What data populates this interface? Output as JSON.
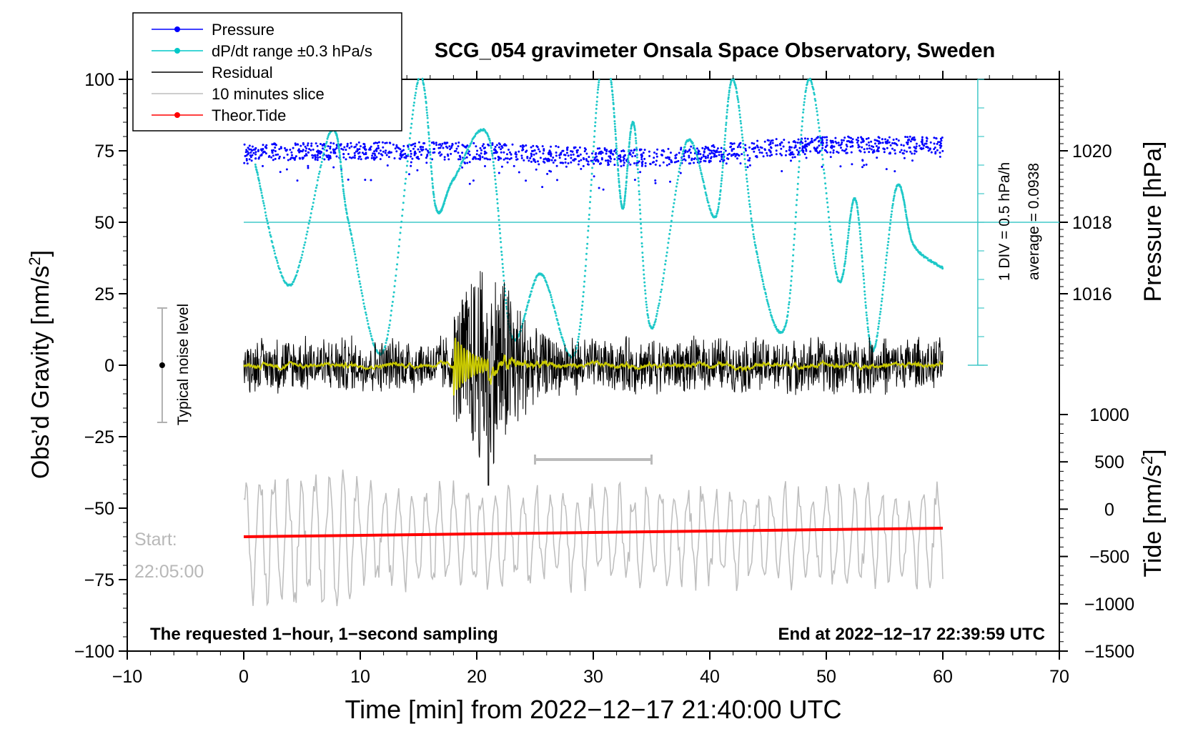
{
  "chart_data": {
    "type": "line",
    "title": "SCG_054 gravimeter Onsala Space Observatory, Sweden",
    "xlabel": "Time [min] from 2022−12−17 21:40:00 UTC",
    "ylabel_left": "Obs’d Gravity [nm/s",
    "ylabel_left_sup": "2",
    "ylabel_left_tail": "]",
    "ylabel_right_pressure": "Pressure [hPa]",
    "ylabel_right_tide": "Tide [nm/s",
    "ylabel_right_tide_sup": "2",
    "ylabel_right_tide_tail": "]",
    "xlim": [
      -10,
      70
    ],
    "ylim": [
      -100,
      100
    ],
    "xticks": [
      -10,
      0,
      10,
      20,
      30,
      40,
      50,
      60,
      70
    ],
    "xtick_labels": [
      "−10",
      "0",
      "10",
      "20",
      "30",
      "40",
      "50",
      "60",
      "70"
    ],
    "yticks": [
      100,
      75,
      50,
      25,
      0,
      -25,
      -50,
      -75,
      -100
    ],
    "ytick_labels": [
      "100",
      "75",
      "50",
      "25",
      "0",
      "−25",
      "−50",
      "−75",
      "−100"
    ],
    "pressure_axis": {
      "ticks": [
        {
          "value": 1020,
          "label": "1020",
          "y_gravity": 75
        },
        {
          "value": 1018,
          "label": "1018",
          "y_gravity": 50
        },
        {
          "value": 1016,
          "label": "1016",
          "y_gravity": 25
        }
      ]
    },
    "tide_axis": {
      "range": [
        -1500,
        1000
      ],
      "ticks": [
        {
          "value": 1000,
          "label": "1000"
        },
        {
          "value": 500,
          "label": "500"
        },
        {
          "value": 0,
          "label": "0"
        },
        {
          "value": -500,
          "label": "−500"
        },
        {
          "value": -1000,
          "label": "−1000"
        },
        {
          "value": -1500,
          "label": "−1500"
        }
      ]
    },
    "legend": {
      "position": "top-left",
      "entries": [
        {
          "label": "Pressure",
          "color": "#0000ff",
          "marker": true
        },
        {
          "label": "dP/dt range ±0.3 hPa/s",
          "color": "#00c8c8",
          "marker": true
        },
        {
          "label": "Residual",
          "color": "#000000",
          "marker": false
        },
        {
          "label": "10 minutes slice",
          "color": "#bdbdbd",
          "marker": false
        },
        {
          "label": "Theor.Tide",
          "color": "#ff0000",
          "marker": true
        }
      ]
    },
    "colors": {
      "pressure": "#0000ff",
      "dpdt": "#1ec8c8",
      "residual": "#000000",
      "smoothed": "#c8c800",
      "slice": "#bdbdbd",
      "tide": "#ff0000",
      "noise_bar": "#b0b0b0"
    },
    "series": [
      {
        "name": "Pressure",
        "kind": "dots",
        "note": "~1020 hPa band, slight dip near 25-40 min",
        "x": [
          0,
          10,
          20,
          25,
          30,
          35,
          40,
          45,
          50,
          55,
          60
        ],
        "y": [
          74.5,
          75,
          75,
          74,
          73,
          72.5,
          74,
          76,
          77,
          77,
          77
        ]
      },
      {
        "name": "dP/dt",
        "kind": "dots",
        "x": [
          1,
          4,
          7.5,
          9,
          12,
          15,
          16.5,
          18,
          21,
          23,
          25.5,
          28.5,
          30.5,
          31.5,
          32.5,
          33.5,
          35,
          38,
          40.5,
          42,
          44,
          46.5,
          48.5,
          51,
          52.5,
          54,
          56,
          57.5,
          60
        ],
        "y": [
          70,
          28,
          82,
          50,
          5,
          100,
          55,
          65,
          80,
          10,
          32,
          5,
          100,
          100,
          55,
          84,
          13,
          78,
          52,
          100,
          40,
          14,
          100,
          30,
          58,
          5,
          62,
          42,
          34
        ]
      },
      {
        "name": "Residual",
        "kind": "line",
        "amplitude_normal": 9,
        "event_window": [
          18,
          27
        ],
        "event_peak": 27,
        "min": -42
      },
      {
        "name": "10 minutes slice",
        "kind": "line",
        "baseline": -60,
        "amplitude": 20
      },
      {
        "name": "Theor.Tide",
        "kind": "line",
        "x": [
          0,
          60
        ],
        "y": [
          -60,
          -57
        ]
      }
    ],
    "noise_level_bar": {
      "x": -7,
      "y_low": -20,
      "y_high": 20,
      "label": "Typical noise level"
    },
    "slice_marker": {
      "x_start": 25,
      "x_end": 35,
      "y": -33
    },
    "hline_average": {
      "y": 50
    },
    "right_scale_label": "1 DIV = 0.5 hPa/h",
    "right_scale_average": "average = 0.0938",
    "start_label_line1": "Start:",
    "start_label_line2": "22:05:00",
    "bottom_left_note": "The requested 1−hour, 1−second sampling",
    "bottom_right_note": "End at 2022−12−17 22:39:59 UTC"
  }
}
